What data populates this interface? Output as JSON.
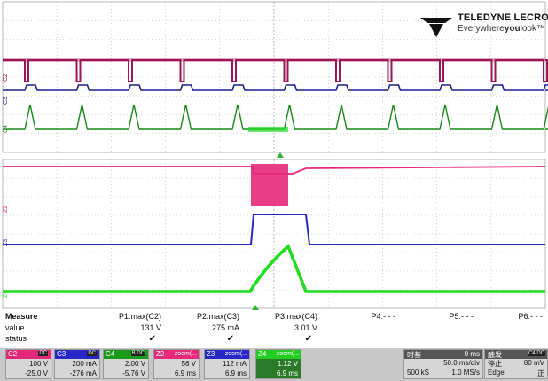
{
  "logo": {
    "brand": "TELEDYNE LECROY",
    "tagline_pre": "Everywhere",
    "tagline_bold": "you",
    "tagline_post": "look",
    "tagline_tm": "™"
  },
  "trace_labels": {
    "upper": [
      "C2",
      "C3",
      "C4"
    ],
    "lower": [
      "Z2",
      "Z3",
      "Z4"
    ]
  },
  "colors": {
    "c2": "#a0145a",
    "c3": "#1e1e96",
    "c4": "#1a8a1a",
    "z2": "#e6287a",
    "z3": "#2828c8",
    "z4": "#22dd22",
    "grid": "#b4b4b4",
    "panel": "#c8c8c8"
  },
  "measure": {
    "title": "Measure",
    "row_value": "value",
    "row_status": "status",
    "params": [
      {
        "name": "P1:max(C2)",
        "value": "131 V",
        "status": "✔"
      },
      {
        "name": "P2:max(C3)",
        "value": "275 mA",
        "status": "✔"
      },
      {
        "name": "P3:max(C4)",
        "value": "3.01 V",
        "status": "✔"
      },
      {
        "name": "P4:- - -",
        "value": "",
        "status": ""
      },
      {
        "name": "P5:- - -",
        "value": "",
        "status": ""
      },
      {
        "name": "P6:- - -",
        "value": "",
        "status": ""
      }
    ]
  },
  "channels": [
    {
      "tag": "C2",
      "cpl": "DC",
      "v1": "100 V",
      "v2": "-25.0 V",
      "color": "#e6287a"
    },
    {
      "tag": "C3",
      "cpl": "DC",
      "v1": "200 mA",
      "v2": "-276 mA",
      "color": "#2828c8"
    },
    {
      "tag": "C4",
      "cpl": "B DC",
      "v1": "2.00 V",
      "v2": "-5.76 V",
      "color": "#1a9a1a"
    },
    {
      "tag": "Z2",
      "cpl": "zoom(...",
      "v1": "56 V",
      "v2": "6.9 ms",
      "color": "#e6287a"
    },
    {
      "tag": "Z3",
      "cpl": "zoom(...",
      "v1": "112 mA",
      "v2": "6.9 ms",
      "color": "#2828c8"
    },
    {
      "tag": "Z4",
      "cpl": "zoom(...",
      "v1": "1.12 V",
      "v2": "6.9 ms",
      "color": "#22cc22"
    }
  ],
  "timebase": {
    "title": "时基",
    "delay": "0 ms",
    "div": "50.0 ms/div",
    "samples": "500 kS",
    "rate": "1.0 MS/s"
  },
  "trigger": {
    "title": "触发",
    "source": "C4 DC",
    "mode": "停止",
    "level": "80 mV",
    "type": "Edge",
    "slope": "正"
  }
}
